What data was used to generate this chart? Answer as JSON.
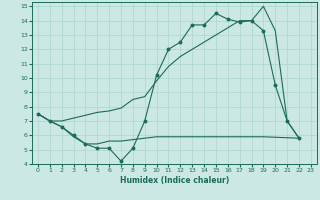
{
  "xlabel": "Humidex (Indice chaleur)",
  "bg_color": "#cce8e4",
  "grid_color": "#b0d8d0",
  "line_color": "#1a6b5a",
  "xlim": [
    -0.5,
    23.5
  ],
  "ylim": [
    4,
    15.3
  ],
  "xticks": [
    0,
    1,
    2,
    3,
    4,
    5,
    6,
    7,
    8,
    9,
    10,
    11,
    12,
    13,
    14,
    15,
    16,
    17,
    18,
    19,
    20,
    21,
    22,
    23
  ],
  "yticks": [
    4,
    5,
    6,
    7,
    8,
    9,
    10,
    11,
    12,
    13,
    14,
    15
  ],
  "series1_x": [
    0,
    1,
    2,
    3,
    4,
    5,
    6,
    7,
    8,
    9,
    10,
    11,
    12,
    13,
    14,
    15,
    16,
    17,
    18,
    19,
    20,
    21,
    22
  ],
  "series1_y": [
    7.5,
    7.0,
    6.6,
    6.0,
    5.4,
    5.1,
    5.1,
    4.2,
    5.1,
    7.0,
    10.2,
    12.0,
    12.5,
    13.7,
    13.7,
    14.5,
    14.1,
    13.9,
    14.0,
    13.3,
    9.5,
    7.0,
    5.8
  ],
  "series2_x": [
    0,
    1,
    2,
    3,
    4,
    5,
    6,
    7,
    8,
    9,
    10,
    11,
    12,
    13,
    14,
    15,
    16,
    17,
    18,
    19,
    20,
    21,
    22
  ],
  "series2_y": [
    7.5,
    7.0,
    7.0,
    7.2,
    7.4,
    7.6,
    7.7,
    7.9,
    8.5,
    8.7,
    9.8,
    10.8,
    11.5,
    12.0,
    12.5,
    13.0,
    13.5,
    14.0,
    14.0,
    15.0,
    13.3,
    7.0,
    5.8
  ],
  "series3_x": [
    0,
    1,
    2,
    3,
    4,
    5,
    6,
    7,
    8,
    9,
    10,
    11,
    12,
    13,
    14,
    15,
    16,
    17,
    18,
    19,
    22
  ],
  "series3_y": [
    7.5,
    7.0,
    6.6,
    5.9,
    5.4,
    5.4,
    5.6,
    5.6,
    5.7,
    5.8,
    5.9,
    5.9,
    5.9,
    5.9,
    5.9,
    5.9,
    5.9,
    5.9,
    5.9,
    5.9,
    5.8
  ]
}
